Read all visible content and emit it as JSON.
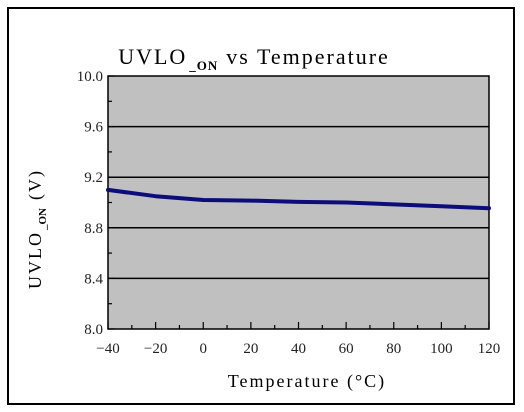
{
  "chart_data": {
    "type": "line",
    "title": {
      "main": "UVLO",
      "subscript": "_ON",
      "rest": "vs Temperature"
    },
    "xlabel": "Temperature (°C)",
    "ylabel": {
      "main": "UVLO",
      "subscript": "_ON",
      "rest": "(V)"
    },
    "xlim": [
      -40,
      120
    ],
    "ylim": [
      8.0,
      10.0
    ],
    "x_ticks": [
      "-40",
      "-20",
      "0",
      "20",
      "40",
      "60",
      "80",
      "100",
      "120"
    ],
    "y_ticks": [
      "8.0",
      "8.4",
      "8.8",
      "9.2",
      "9.6",
      "10.0"
    ],
    "grid": "horizontal",
    "series": [
      {
        "x": [
          -40,
          -20,
          0,
          20,
          40,
          60,
          80,
          100,
          120
        ],
        "values": [
          9.1,
          9.05,
          9.02,
          9.015,
          9.005,
          9.0,
          8.985,
          8.97,
          8.955
        ]
      }
    ],
    "colors": {
      "plot_bg": "#c0c0c0",
      "line": "#0c0c7a",
      "grid": "#000000"
    }
  }
}
